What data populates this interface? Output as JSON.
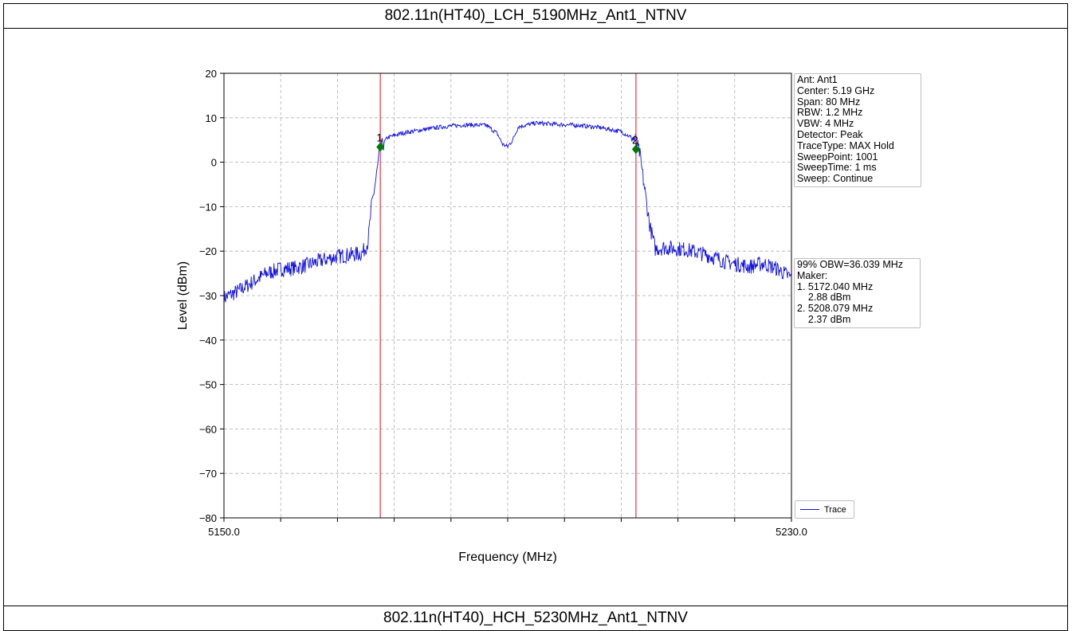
{
  "header": {
    "top_title": "802.11n(HT40)_LCH_5190MHz_Ant1_NTNV",
    "bottom_title": "802.11n(HT40)_HCH_5230MHz_Ant1_NTNV"
  },
  "chart_data": {
    "type": "line",
    "title": "",
    "xlabel": "Frequency (MHz)",
    "ylabel": "Level (dBm)",
    "xlim": [
      5150.0,
      5230.0
    ],
    "ylim": [
      -80,
      20
    ],
    "x_ticks_major": [
      5150.0,
      5230.0
    ],
    "x_tick_labels": [
      "5150.0",
      "5230.0"
    ],
    "x_ticks_minor": [
      5158,
      5166,
      5174,
      5182,
      5190,
      5198,
      5206,
      5214,
      5222
    ],
    "y_ticks": [
      20,
      10,
      0,
      -10,
      -20,
      -30,
      -40,
      -50,
      -60,
      -70,
      -80
    ],
    "y_tick_labels": [
      "20",
      "10",
      "0",
      "−10",
      "−20",
      "−30",
      "−40",
      "−50",
      "−60",
      "−70",
      "−80"
    ],
    "grid": true,
    "legend": {
      "placement": "lower-right-outside",
      "entries": [
        {
          "name": "Trace",
          "color": "#1010e0"
        }
      ]
    },
    "series": [
      {
        "name": "Trace",
        "color": "#1010e0",
        "points": [
          [
            5150.0,
            -30.5
          ],
          [
            5152.0,
            -29.0
          ],
          [
            5154.0,
            -27.0
          ],
          [
            5156.0,
            -25.0
          ],
          [
            5158.0,
            -24.0
          ],
          [
            5160.0,
            -23.8
          ],
          [
            5162.0,
            -23.0
          ],
          [
            5164.0,
            -22.0
          ],
          [
            5166.0,
            -21.2
          ],
          [
            5168.0,
            -20.8
          ],
          [
            5169.5,
            -20.5
          ],
          [
            5170.3,
            -18.0
          ],
          [
            5170.8,
            -10.0
          ],
          [
            5171.5,
            -3.0
          ],
          [
            5172.0,
            2.9
          ],
          [
            5173.0,
            5.5
          ],
          [
            5175.0,
            6.5
          ],
          [
            5178.0,
            7.3
          ],
          [
            5181.0,
            8.0
          ],
          [
            5184.0,
            8.4
          ],
          [
            5187.0,
            8.3
          ],
          [
            5188.5,
            6.5
          ],
          [
            5189.3,
            4.0
          ],
          [
            5190.0,
            3.5
          ],
          [
            5190.7,
            5.0
          ],
          [
            5191.5,
            8.0
          ],
          [
            5194.0,
            8.8
          ],
          [
            5197.0,
            8.5
          ],
          [
            5200.0,
            8.3
          ],
          [
            5203.0,
            7.8
          ],
          [
            5206.0,
            6.9
          ],
          [
            5208.0,
            5.0
          ],
          [
            5208.6,
            2.0
          ],
          [
            5209.3,
            -6.0
          ],
          [
            5210.0,
            -14.0
          ],
          [
            5210.8,
            -19.5
          ],
          [
            5212.0,
            -19.2
          ],
          [
            5215.0,
            -19.6
          ],
          [
            5218.0,
            -20.8
          ],
          [
            5221.0,
            -22.5
          ],
          [
            5224.0,
            -23.5
          ],
          [
            5226.0,
            -22.8
          ],
          [
            5228.0,
            -24.0
          ],
          [
            5230.0,
            -26.0
          ]
        ],
        "noise_amplitude_dB": 1.6
      }
    ],
    "vlines": [
      {
        "x": 5172.04,
        "color": "#e8323c"
      },
      {
        "x": 5208.079,
        "color": "#e8323c"
      }
    ],
    "markers": [
      {
        "label": "1",
        "x": 5172.04,
        "y": 2.88,
        "color": "#007a00"
      },
      {
        "label": "2",
        "x": 5208.079,
        "y": 2.37,
        "color": "#007a00"
      }
    ],
    "annotations": {
      "info_lines": [
        "Ant: Ant1",
        "Center: 5.19 GHz",
        "Span: 80 MHz",
        "RBW: 1.2 MHz",
        "VBW: 4 MHz",
        "Detector: Peak",
        "TraceType: MAX Hold",
        "SweepPoint: 1001",
        "SweepTime: 1 ms",
        "Sweep: Continue"
      ],
      "obw_lines": [
        "99% OBW=36.039 MHz",
        "Maker:",
        "1. 5172.040 MHz",
        "    2.88 dBm",
        "2. 5208.079 MHz",
        "    2.37 dBm"
      ]
    }
  }
}
